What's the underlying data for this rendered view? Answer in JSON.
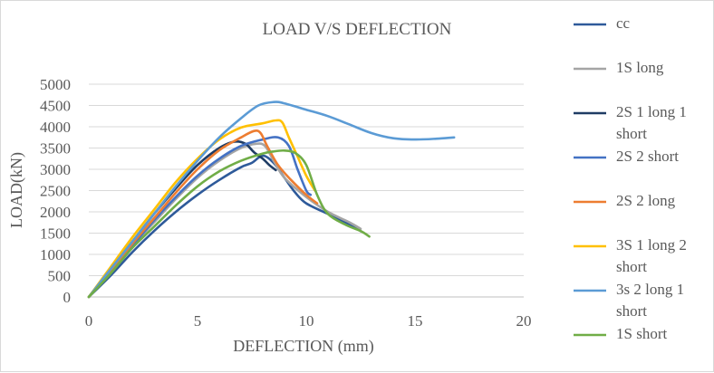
{
  "chart_data": {
    "type": "line",
    "title": "LOAD V/S DEFLECTION",
    "xlabel": "DEFLECTION (mm)",
    "ylabel": "LOAD(kN)",
    "xlim": [
      0,
      20
    ],
    "ylim": [
      0,
      5000
    ],
    "x_ticks": [
      "0",
      "5",
      "10",
      "15",
      "20"
    ],
    "y_ticks": [
      "0",
      "500",
      "1000",
      "1500",
      "2000",
      "2500",
      "3000",
      "3500",
      "4000",
      "4500",
      "5000"
    ],
    "grid": "horizontal",
    "legend_position": "right",
    "series": [
      {
        "name": "cc",
        "color": "#2e5a9a",
        "points": [
          [
            0,
            0
          ],
          [
            1,
            500
          ],
          [
            2,
            1050
          ],
          [
            3,
            1550
          ],
          [
            4,
            2000
          ],
          [
            5,
            2400
          ],
          [
            6,
            2750
          ],
          [
            7,
            3050
          ],
          [
            7.5,
            3150
          ],
          [
            8,
            3320
          ],
          [
            8.5,
            3150
          ],
          [
            9,
            2800
          ],
          [
            9.5,
            2450
          ],
          [
            10,
            2200
          ],
          [
            11,
            1950
          ],
          [
            12,
            1700
          ],
          [
            12.5,
            1550
          ]
        ]
      },
      {
        "name": "1S long",
        "color": "#a5a5a5",
        "points": [
          [
            0,
            0
          ],
          [
            1,
            600
          ],
          [
            2,
            1200
          ],
          [
            3,
            1750
          ],
          [
            4,
            2300
          ],
          [
            5,
            2800
          ],
          [
            6,
            3200
          ],
          [
            7,
            3500
          ],
          [
            7.7,
            3600
          ],
          [
            8.1,
            3550
          ],
          [
            8.5,
            3200
          ],
          [
            9,
            2800
          ],
          [
            10,
            2350
          ],
          [
            11,
            2000
          ],
          [
            12,
            1750
          ],
          [
            12.5,
            1600
          ]
        ]
      },
      {
        "name": "2S 1 long 1 short",
        "color": "#1f3c64",
        "points": [
          [
            0,
            0
          ],
          [
            1,
            650
          ],
          [
            2,
            1300
          ],
          [
            3,
            1950
          ],
          [
            4,
            2550
          ],
          [
            5,
            3100
          ],
          [
            6,
            3500
          ],
          [
            6.7,
            3650
          ],
          [
            7.2,
            3600
          ],
          [
            7.6,
            3400
          ],
          [
            8,
            3250
          ],
          [
            8.3,
            3100
          ],
          [
            8.6,
            2980
          ]
        ]
      },
      {
        "name": "2S   2 short",
        "color": "#4472c4",
        "points": [
          [
            0,
            0
          ],
          [
            1,
            600
          ],
          [
            2,
            1200
          ],
          [
            3,
            1800
          ],
          [
            4,
            2350
          ],
          [
            5,
            2850
          ],
          [
            6,
            3250
          ],
          [
            7,
            3550
          ],
          [
            8,
            3700
          ],
          [
            8.7,
            3750
          ],
          [
            9.2,
            3550
          ],
          [
            9.6,
            3000
          ],
          [
            10,
            2500
          ],
          [
            10.2,
            2400
          ]
        ]
      },
      {
        "name": "2S   2 long",
        "color": "#ed7d31",
        "points": [
          [
            0,
            0
          ],
          [
            1,
            620
          ],
          [
            2,
            1250
          ],
          [
            3,
            1850
          ],
          [
            4,
            2450
          ],
          [
            5,
            3000
          ],
          [
            6,
            3450
          ],
          [
            7,
            3750
          ],
          [
            7.6,
            3900
          ],
          [
            7.9,
            3850
          ],
          [
            8.2,
            3550
          ],
          [
            8.7,
            3100
          ],
          [
            9.3,
            2750
          ],
          [
            10,
            2400
          ],
          [
            10.5,
            2200
          ]
        ]
      },
      {
        "name": "3S 1 long 2 short",
        "color": "#ffc000",
        "points": [
          [
            0,
            0
          ],
          [
            1,
            700
          ],
          [
            2,
            1400
          ],
          [
            3,
            2050
          ],
          [
            4,
            2700
          ],
          [
            5,
            3250
          ],
          [
            6,
            3700
          ],
          [
            7,
            3980
          ],
          [
            8,
            4080
          ],
          [
            8.6,
            4150
          ],
          [
            8.9,
            4100
          ],
          [
            9.2,
            3750
          ],
          [
            9.6,
            3300
          ],
          [
            10,
            2850
          ],
          [
            10.4,
            2500
          ]
        ]
      },
      {
        "name": "3s 2 long 1 short",
        "color": "#5b9bd5",
        "points": [
          [
            0,
            0
          ],
          [
            1,
            650
          ],
          [
            2,
            1300
          ],
          [
            3,
            1950
          ],
          [
            4,
            2600
          ],
          [
            5,
            3200
          ],
          [
            6,
            3750
          ],
          [
            7,
            4200
          ],
          [
            7.8,
            4500
          ],
          [
            8.5,
            4580
          ],
          [
            9,
            4550
          ],
          [
            10,
            4400
          ],
          [
            11,
            4250
          ],
          [
            12,
            4050
          ],
          [
            13,
            3850
          ],
          [
            14,
            3730
          ],
          [
            15,
            3700
          ],
          [
            16,
            3720
          ],
          [
            16.8,
            3750
          ]
        ]
      },
      {
        "name": "1S short",
        "color": "#70ad47",
        "points": [
          [
            0,
            0
          ],
          [
            1,
            550
          ],
          [
            2,
            1150
          ],
          [
            3,
            1650
          ],
          [
            4,
            2150
          ],
          [
            5,
            2600
          ],
          [
            6,
            2950
          ],
          [
            7,
            3200
          ],
          [
            8,
            3370
          ],
          [
            8.5,
            3420
          ],
          [
            9,
            3440
          ],
          [
            9.5,
            3380
          ],
          [
            10,
            3100
          ],
          [
            10.5,
            2400
          ],
          [
            11,
            1950
          ],
          [
            11.8,
            1700
          ],
          [
            12.5,
            1550
          ],
          [
            12.9,
            1420
          ]
        ]
      }
    ]
  }
}
